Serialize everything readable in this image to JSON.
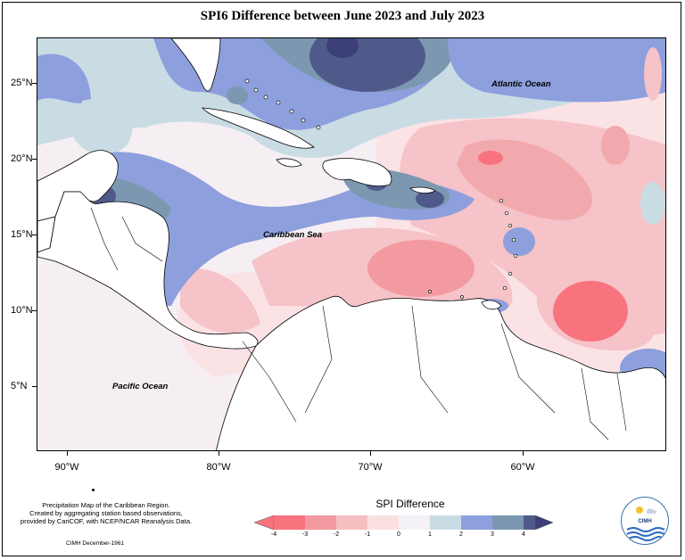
{
  "title": "SPI6 Difference between June 2023 and July 2023",
  "map": {
    "latitude_labels": [
      "25°N",
      "20°N",
      "15°N",
      "10°N",
      "5°N"
    ],
    "longitude_labels": [
      "90°W",
      "80°W",
      "70°W",
      "60°W"
    ],
    "regions": {
      "atlantic": "Atlantic Ocean",
      "caribbean": "Caribbean Sea",
      "pacific": "Pacific Ocean"
    },
    "colors": {
      "land": "#ffffff",
      "coastline": "#000000"
    }
  },
  "legend": {
    "title": "SPI Difference",
    "ticks": [
      "-4",
      "-3",
      "-2",
      "-1",
      "0",
      "1",
      "2",
      "3",
      "4"
    ],
    "colors": [
      "#f9737e",
      "#f29a9f",
      "#f5bfc1",
      "#fbe0e0",
      "#f4f2f6",
      "#c9dce4",
      "#8d9fdc",
      "#7c98b0",
      "#4f5a8a",
      "#3c3f78"
    ]
  },
  "footnote": {
    "line1": "Precipitation Map of the Caribbean Region.",
    "line2": "Created by aggregating station based observations,",
    "line3": "provided by CariCOF, with NCEP/NCAR Reanalysis Data.",
    "credit": "CIMH December-1961"
  },
  "logo": {
    "text": "CIMH"
  }
}
